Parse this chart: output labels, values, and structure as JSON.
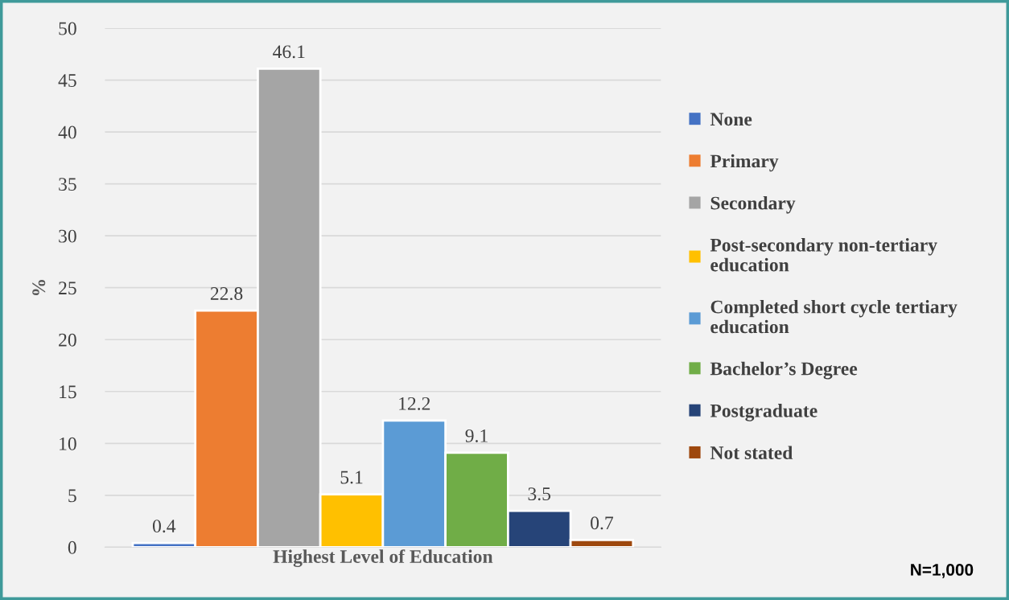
{
  "chart_data": {
    "type": "bar",
    "ylabel": "%",
    "categories": [
      "Highest Level of Education"
    ],
    "series": [
      {
        "name": "None",
        "color": "#4472c4",
        "values": [
          0.4
        ]
      },
      {
        "name": "Primary",
        "color": "#ed7d31",
        "values": [
          22.8
        ]
      },
      {
        "name": "Secondary",
        "color": "#a5a5a5",
        "values": [
          46.1
        ]
      },
      {
        "name": "Post-secondary non-tertiary education",
        "color": "#ffc000",
        "values": [
          5.1
        ]
      },
      {
        "name": "Completed short cycle tertiary education",
        "color": "#5b9bd5",
        "values": [
          12.2
        ]
      },
      {
        "name": "Bachelor’s Degree",
        "color": "#70ad47",
        "values": [
          9.1
        ]
      },
      {
        "name": "Postgraduate",
        "color": "#264478",
        "values": [
          3.5
        ]
      },
      {
        "name": "Not stated",
        "color": "#9e480e",
        "values": [
          0.7
        ]
      }
    ],
    "ylim": [
      0,
      50
    ],
    "yticks": [
      0,
      5,
      10,
      15,
      20,
      25,
      30,
      35,
      40,
      45,
      50
    ],
    "grid": "y",
    "legend": "right",
    "data_labels": true,
    "annotations": [
      "N=1,000"
    ]
  }
}
